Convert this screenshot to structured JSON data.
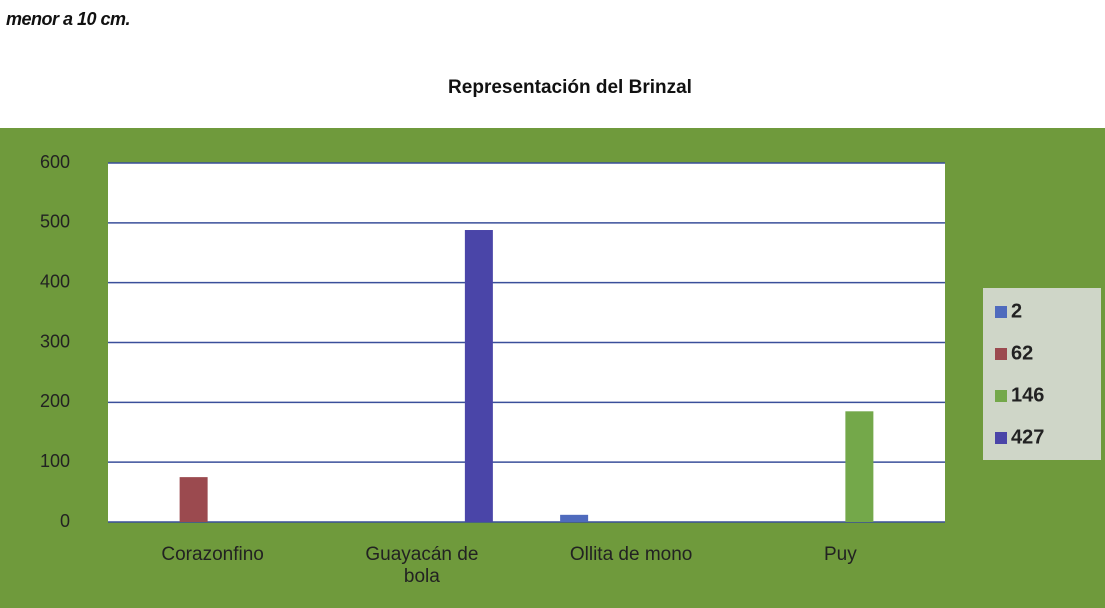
{
  "caption": "menor a 10 cm.",
  "chart_data": {
    "type": "bar",
    "title": "Representación del Brinzal",
    "categories": [
      "Corazonfino",
      "Guayacán de bola",
      "Ollita de mono",
      "Puy"
    ],
    "series": [
      {
        "name": "2",
        "color": "#4f6bbd",
        "values": [
          null,
          null,
          12,
          null
        ]
      },
      {
        "name": "62",
        "color": "#9b4a4f",
        "values": [
          75,
          null,
          null,
          null
        ]
      },
      {
        "name": "146",
        "color": "#74a84a",
        "values": [
          null,
          null,
          null,
          185
        ]
      },
      {
        "name": "427",
        "color": "#4a45a8",
        "values": [
          null,
          488,
          null,
          null
        ]
      }
    ],
    "ylim": [
      0,
      600
    ],
    "yticks": [
      0,
      100,
      200,
      300,
      400,
      500,
      600
    ],
    "grid": true,
    "legend": "right"
  }
}
